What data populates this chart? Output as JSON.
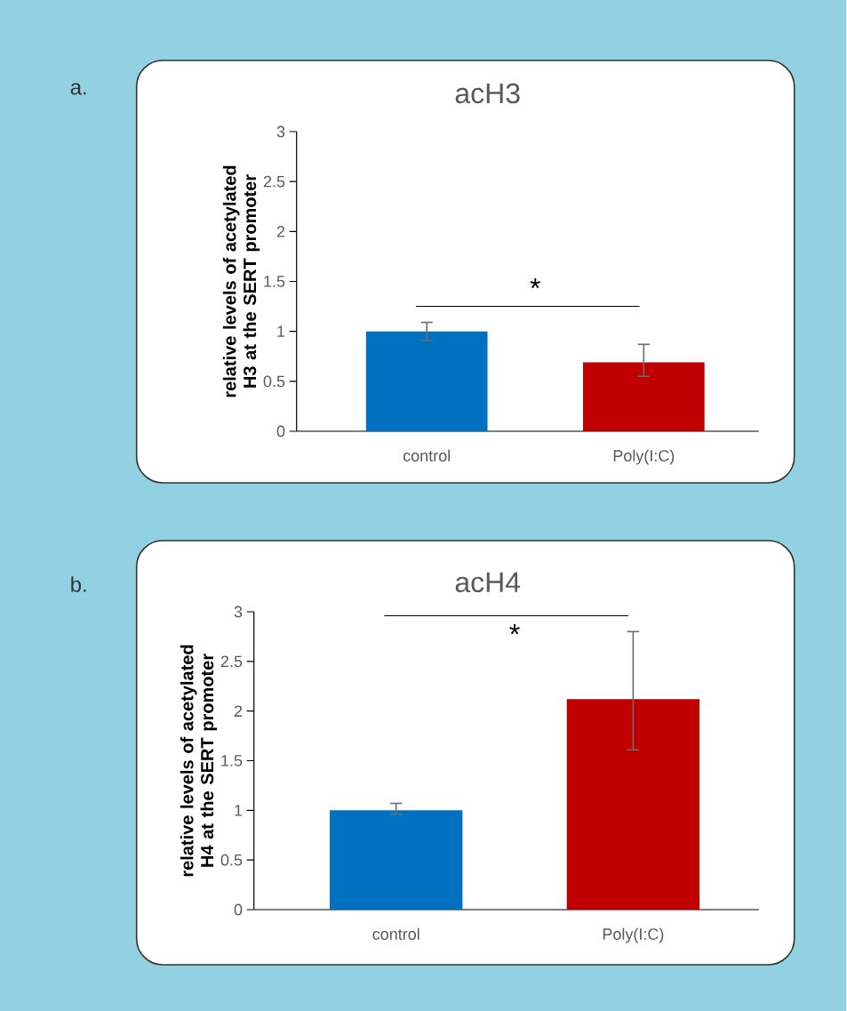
{
  "chart_data": [
    {
      "type": "bar",
      "title": "acH3",
      "ylabel": "relative  levels  of  acetylated H3 at the SERT promoter",
      "categories": [
        "control",
        "Poly(I:C)"
      ],
      "values": [
        1.0,
        0.69
      ],
      "colors": [
        "#0070c0",
        "#c00000"
      ],
      "errors": [
        0.09,
        [
          0.55,
          0.87
        ]
      ],
      "ylim": [
        0,
        3
      ],
      "yticks": [
        0,
        0.5,
        1,
        1.5,
        2,
        2.5,
        3
      ],
      "annotations": [
        "a.",
        "*"
      ]
    },
    {
      "type": "bar",
      "title": "acH4",
      "ylabel": "relative levels of acetylated H4 at the SERT promoter",
      "categories": [
        "control",
        "Poly(I:C)"
      ],
      "values": [
        1.0,
        2.12
      ],
      "colors": [
        "#0070c0",
        "#c00000"
      ],
      "errors": [
        [
          0.96,
          1.07
        ],
        [
          1.61,
          2.8
        ]
      ],
      "ylim": [
        0,
        3
      ],
      "yticks": [
        0,
        0.5,
        1,
        1.5,
        2,
        2.5,
        3
      ],
      "annotations": [
        "b.",
        "*"
      ]
    }
  ]
}
